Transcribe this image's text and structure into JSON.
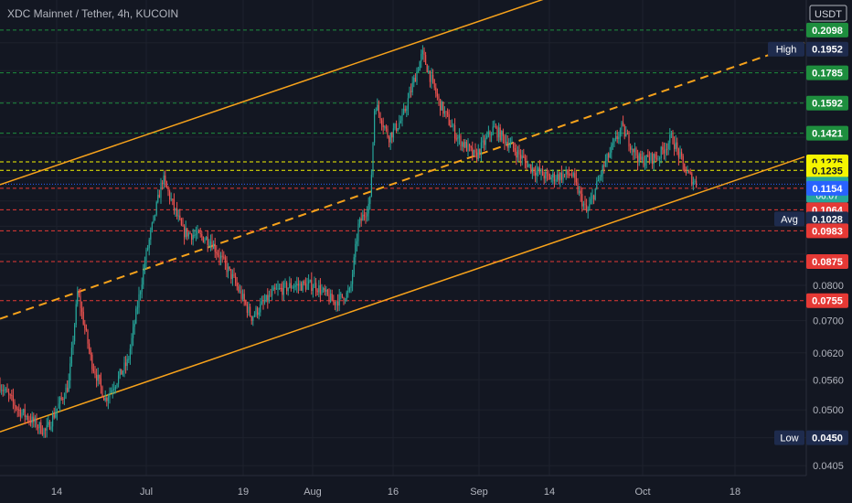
{
  "header": {
    "title": "XDC Mainnet / Tether, 4h, KUCOIN",
    "currency_badge": "USDT"
  },
  "colors": {
    "background": "#131722",
    "grid": "#1e222d",
    "axis_text": "#b2b5be",
    "candle_up": "#26a69a",
    "candle_down": "#ef5350",
    "channel": "#f7a21b",
    "green_level": "#1e8e3e",
    "yellow_level": "#f5f500",
    "red_level": "#e53935",
    "blue_level": "#2962ff",
    "teal_label": "#26a69a",
    "navy_label": "#1e2b4d"
  },
  "chart_data": {
    "type": "candlestick",
    "y_scale": "log",
    "ylim": [
      0.039,
      0.235
    ],
    "x_ticks": [
      "14",
      "Jul",
      "19",
      "Aug",
      "16",
      "Sep",
      "14",
      "Oct",
      "18"
    ],
    "y_ticks": [
      "0.0405",
      "0.0450",
      "0.0500",
      "0.0560",
      "0.0620",
      "0.0700",
      "0.0800",
      "0.0875",
      "0.0983",
      "0.1028",
      "0.1064",
      "0.1154",
      "0.1172",
      "0.1235",
      "0.1275",
      "0.1421",
      "0.1592",
      "0.1785",
      "0.1952",
      "0.2098"
    ],
    "price_keyframes": [
      {
        "t": 0,
        "p": 0.055
      },
      {
        "t": 20,
        "p": 0.05
      },
      {
        "t": 50,
        "p": 0.046
      },
      {
        "t": 75,
        "p": 0.055
      },
      {
        "t": 85,
        "p": 0.078
      },
      {
        "t": 100,
        "p": 0.06
      },
      {
        "t": 115,
        "p": 0.052
      },
      {
        "t": 140,
        "p": 0.06
      },
      {
        "t": 160,
        "p": 0.09
      },
      {
        "t": 178,
        "p": 0.12
      },
      {
        "t": 200,
        "p": 0.098
      },
      {
        "t": 230,
        "p": 0.095
      },
      {
        "t": 255,
        "p": 0.082
      },
      {
        "t": 275,
        "p": 0.071
      },
      {
        "t": 300,
        "p": 0.078
      },
      {
        "t": 320,
        "p": 0.08
      },
      {
        "t": 345,
        "p": 0.08
      },
      {
        "t": 365,
        "p": 0.075
      },
      {
        "t": 383,
        "p": 0.078
      },
      {
        "t": 392,
        "p": 0.1
      },
      {
        "t": 405,
        "p": 0.11
      },
      {
        "t": 410,
        "p": 0.16
      },
      {
        "t": 425,
        "p": 0.14
      },
      {
        "t": 440,
        "p": 0.15
      },
      {
        "t": 462,
        "p": 0.192
      },
      {
        "t": 480,
        "p": 0.16
      },
      {
        "t": 500,
        "p": 0.14
      },
      {
        "t": 520,
        "p": 0.13
      },
      {
        "t": 540,
        "p": 0.145
      },
      {
        "t": 560,
        "p": 0.135
      },
      {
        "t": 580,
        "p": 0.125
      },
      {
        "t": 600,
        "p": 0.12
      },
      {
        "t": 625,
        "p": 0.122
      },
      {
        "t": 642,
        "p": 0.105
      },
      {
        "t": 660,
        "p": 0.125
      },
      {
        "t": 680,
        "p": 0.145
      },
      {
        "t": 700,
        "p": 0.128
      },
      {
        "t": 720,
        "p": 0.13
      },
      {
        "t": 735,
        "p": 0.14
      },
      {
        "t": 750,
        "p": 0.123
      },
      {
        "t": 762,
        "p": 0.117
      }
    ],
    "trendlines": [
      {
        "name": "channel-upper",
        "style": "solid",
        "p1": {
          "t": 0,
          "p": 0.117
        },
        "p2": {
          "t": 610,
          "p": 0.24
        }
      },
      {
        "name": "channel-middle",
        "style": "dashed",
        "p1": {
          "t": 0,
          "p": 0.0705
        },
        "p2": {
          "t": 880,
          "p": 0.2
        }
      },
      {
        "name": "channel-lower",
        "style": "solid",
        "p1": {
          "t": 0,
          "p": 0.046
        },
        "p2": {
          "t": 880,
          "p": 0.13
        }
      }
    ],
    "horizontal_levels": [
      {
        "value": 0.2098,
        "color": "green"
      },
      {
        "value": 0.1785,
        "color": "green"
      },
      {
        "value": 0.1592,
        "color": "green"
      },
      {
        "value": 0.1421,
        "color": "green"
      },
      {
        "value": 0.1275,
        "color": "yellow"
      },
      {
        "value": 0.1235,
        "color": "yellow"
      },
      {
        "value": 0.1172,
        "color": "blue"
      },
      {
        "value": 0.1154,
        "color": "red"
      },
      {
        "value": 0.1064,
        "color": "red"
      },
      {
        "value": 0.0983,
        "color": "red"
      },
      {
        "value": 0.0875,
        "color": "red"
      },
      {
        "value": 0.0755,
        "color": "red"
      }
    ],
    "price_labels": [
      {
        "text": "0.2098",
        "value": 0.2098,
        "bg": "#1e8e3e",
        "fg": "#ffffff"
      },
      {
        "text": "0.1952",
        "value": 0.1952,
        "bg": "#1e2b4d",
        "fg": "#ffffff",
        "tag": "High"
      },
      {
        "text": "0.1785",
        "value": 0.1785,
        "bg": "#1e8e3e",
        "fg": "#ffffff"
      },
      {
        "text": "0.1592",
        "value": 0.1592,
        "bg": "#1e8e3e",
        "fg": "#ffffff"
      },
      {
        "text": "0.1421",
        "value": 0.1421,
        "bg": "#1e8e3e",
        "fg": "#ffffff"
      },
      {
        "text": "0.1275",
        "value": 0.1275,
        "bg": "#f5f500",
        "fg": "#131722"
      },
      {
        "text": "0.1235",
        "value": 0.1235,
        "bg": "#f5f500",
        "fg": "#131722"
      },
      {
        "text": "0.1172",
        "value": 0.1172,
        "bg": "#26a69a",
        "fg": "#ffffff",
        "sub": "06:07"
      },
      {
        "text": "0.1154",
        "value": 0.1154,
        "bg": "#2962ff",
        "fg": "#ffffff"
      },
      {
        "text": "0.1064",
        "value": 0.1064,
        "bg": "#e53935",
        "fg": "#ffffff"
      },
      {
        "text": "0.1028",
        "value": 0.1028,
        "bg": "#1e2b4d",
        "fg": "#ffffff",
        "tag": "Avg"
      },
      {
        "text": "0.0983",
        "value": 0.0983,
        "bg": "#e53935",
        "fg": "#ffffff"
      },
      {
        "text": "0.0875",
        "value": 0.0875,
        "bg": "#e53935",
        "fg": "#ffffff"
      },
      {
        "text": "0.0755",
        "value": 0.0755,
        "bg": "#e53935",
        "fg": "#ffffff"
      },
      {
        "text": "0.0450",
        "value": 0.045,
        "bg": "#1e2b4d",
        "fg": "#ffffff",
        "tag": "Low"
      }
    ],
    "plain_ticks": [
      {
        "text": "0.0800",
        "value": 0.08
      },
      {
        "text": "0.0700",
        "value": 0.07
      },
      {
        "text": "0.0620",
        "value": 0.062
      },
      {
        "text": "0.0560",
        "value": 0.056
      },
      {
        "text": "0.0500",
        "value": 0.05
      },
      {
        "text": "0.0405",
        "value": 0.0405
      }
    ]
  }
}
